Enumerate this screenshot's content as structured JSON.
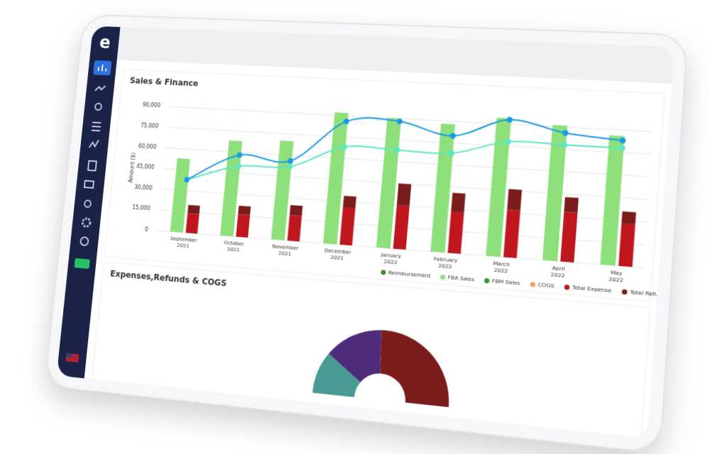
{
  "chart_data": [
    {
      "type": "bar",
      "title": "Sales & Finance",
      "ylabel": "Amount ($)",
      "categories": [
        [
          "September",
          "2021"
        ],
        [
          "October",
          "2021"
        ],
        [
          "November",
          "2021"
        ],
        [
          "December",
          "2021"
        ],
        [
          "January",
          "2022"
        ],
        [
          "February",
          "2022"
        ],
        [
          "March",
          "2022"
        ],
        [
          "April",
          "2022"
        ],
        [
          "May",
          "2022"
        ]
      ],
      "ylim": [
        0,
        100000
      ],
      "yticks": [
        0,
        {
          "value": 15000,
          "label": "15,000"
        },
        {
          "value": 30000,
          "label": "30,000"
        },
        {
          "value": 45000,
          "label": "45,000"
        },
        {
          "value": 60000,
          "label": "60,000"
        },
        {
          "value": 75000,
          "label": "75,000"
        },
        {
          "value": 90000,
          "label": "90,000"
        }
      ],
      "grid": true,
      "series": [
        {
          "name": "Reimbursement",
          "type": "bar",
          "color": "#3a8a2e",
          "values": [
            null,
            null,
            null,
            null,
            null,
            null,
            null,
            null,
            null
          ]
        },
        {
          "name": "FBA Sales",
          "type": "bar",
          "color": "#8ee07a",
          "values": [
            53000,
            68000,
            70000,
            92000,
            90000,
            88000,
            94000,
            91000,
            86000
          ]
        },
        {
          "name": "FBM Sales",
          "type": "bar",
          "color": "#2f9a2a",
          "values": [
            null,
            null,
            null,
            null,
            null,
            null,
            null,
            null,
            null
          ]
        },
        {
          "name": "COGS",
          "type": "bar",
          "color": "#f0a060",
          "values": [
            null,
            null,
            null,
            null,
            null,
            null,
            null,
            null,
            null
          ]
        },
        {
          "name": "Total Expense",
          "type": "bar",
          "stacked": true,
          "color": "#c0161e",
          "values": [
            14000,
            16000,
            18000,
            26000,
            30000,
            28000,
            32000,
            33000,
            28000
          ]
        },
        {
          "name": "Total Refund",
          "type": "bar",
          "stacked": true,
          "color": "#7a1c1c",
          "values": [
            6000,
            6000,
            7000,
            8000,
            15000,
            13000,
            14000,
            10000,
            8000
          ]
        },
        {
          "name": "Total",
          "type": "line",
          "color": "#5ee6c0",
          "values": [
            38000,
            50000,
            52000,
            68000,
            68000,
            68000,
            78000,
            78000,
            78000
          ]
        },
        {
          "type": "line",
          "color": "#1a9be6",
          "values": [
            38000,
            58000,
            56000,
            86000,
            88000,
            80000,
            93000,
            86000,
            83000
          ]
        }
      ]
    },
    {
      "type": "pie",
      "title": "Expenses,Refunds & COGS",
      "half": true,
      "values": [
        20,
        28,
        52
      ],
      "colors": [
        "#4a9a94",
        "#4e2a7a",
        "#7a1c1c"
      ]
    }
  ]
}
